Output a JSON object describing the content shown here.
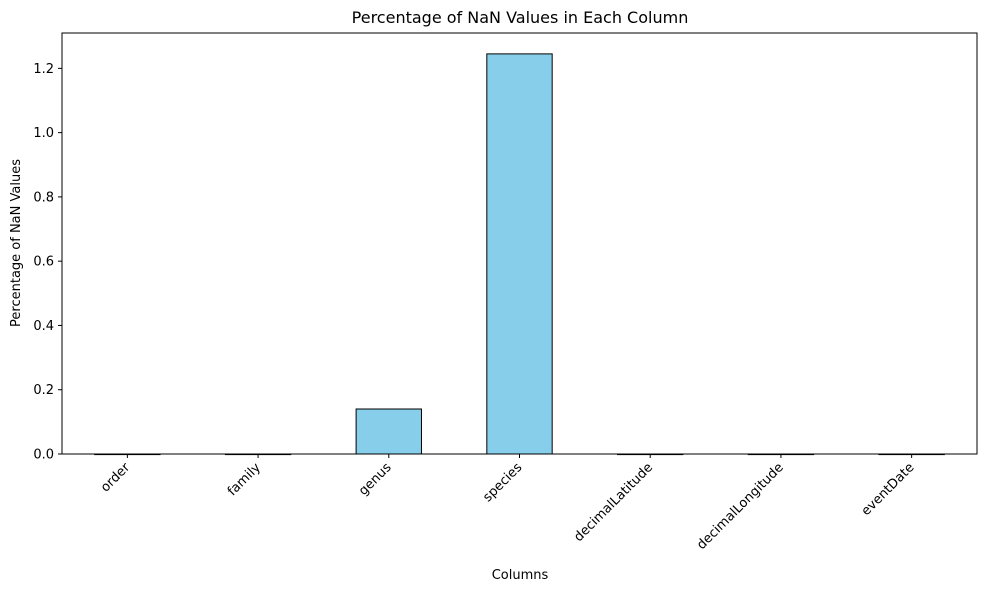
{
  "chart_data": {
    "type": "bar",
    "title": "Percentage of NaN Values in Each Column",
    "xlabel": "Columns",
    "ylabel": "Percentage of NaN Values",
    "categories": [
      "order",
      "family",
      "genus",
      "species",
      "decimalLatitude",
      "decimalLongitude",
      "eventDate"
    ],
    "values": [
      0,
      0,
      0.14,
      1.245,
      0,
      0,
      0
    ],
    "ylim": [
      0,
      1.31
    ],
    "yticks": [
      0.0,
      0.2,
      0.4,
      0.6,
      0.8,
      1.0,
      1.2
    ],
    "ytick_labels": [
      "0.0",
      "0.2",
      "0.4",
      "0.6",
      "0.8",
      "1.0",
      "1.2"
    ],
    "grid": false,
    "bar_color": "#87CEEB",
    "edge_color": "#000000"
  }
}
